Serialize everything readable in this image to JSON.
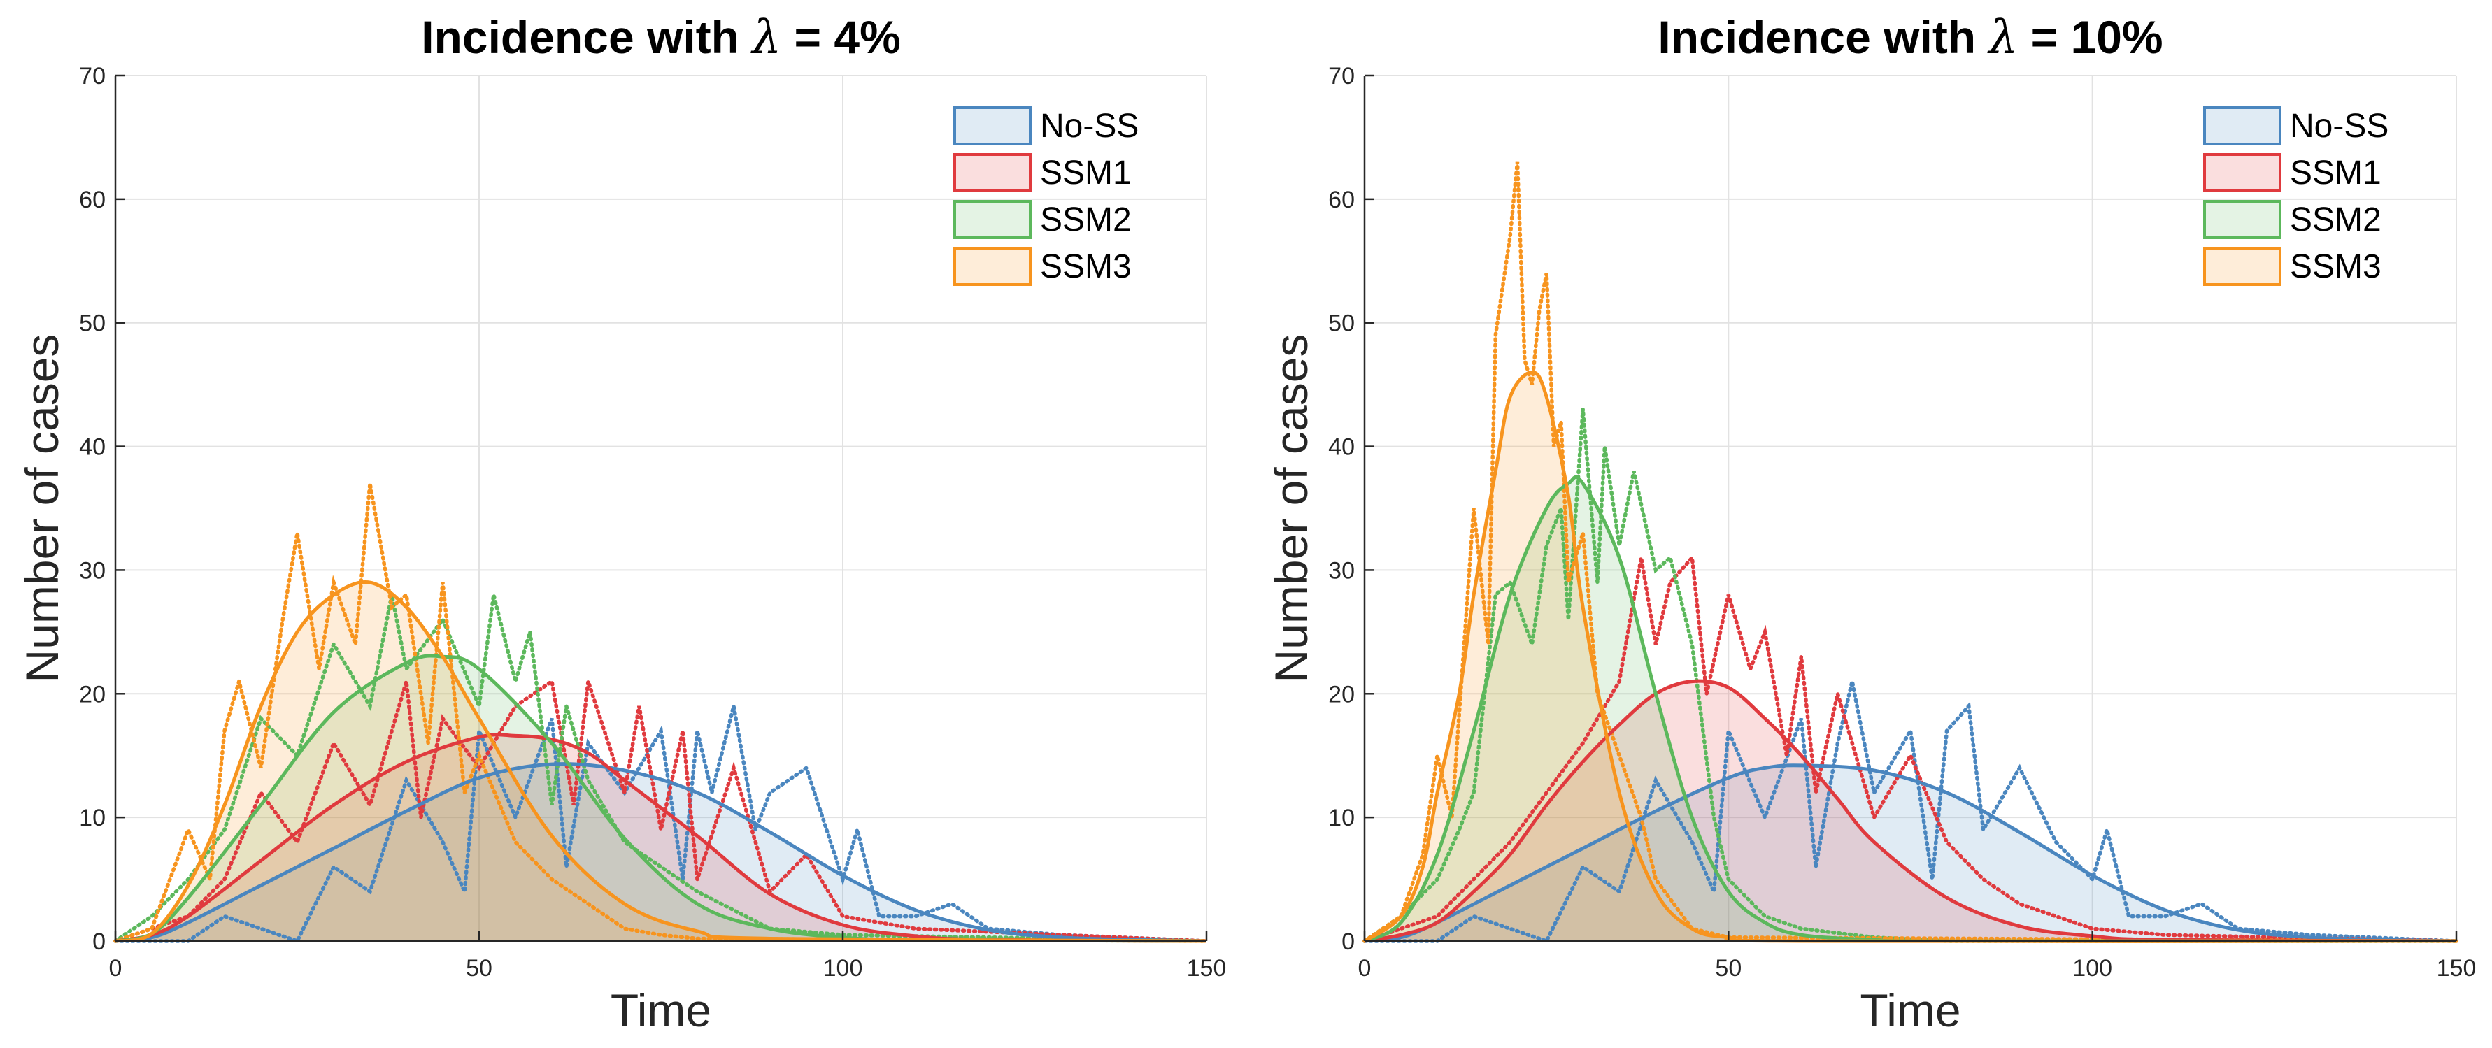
{
  "colors": {
    "No-SS": "#4a86bf",
    "SSM1": "#e03a3e",
    "SSM2": "#5cb85c",
    "SSM3": "#f7941e"
  },
  "chart_data": [
    {
      "type": "line",
      "title": "Incidence with λ = 4%",
      "title_prefix": "Incidence with ",
      "lambda_symbol": "λ",
      "title_suffix": " = 4%",
      "xlabel": "Time",
      "ylabel": "Number of cases",
      "xlim": [
        0,
        150
      ],
      "ylim": [
        0,
        70
      ],
      "xticks": [
        0,
        50,
        100,
        150
      ],
      "yticks": [
        0,
        10,
        20,
        30,
        40,
        50,
        60,
        70
      ],
      "grid": true,
      "legend": [
        "No-SS",
        "SSM1",
        "SSM2",
        "SSM3"
      ],
      "legend_position": "top-right",
      "fill_area": true,
      "series": [
        {
          "name": "No-SS",
          "style": "smooth",
          "x": [
            0,
            5,
            10,
            20,
            30,
            40,
            50,
            60,
            70,
            80,
            90,
            100,
            110,
            120,
            130,
            140,
            150
          ],
          "y": [
            0,
            0.3,
            1.5,
            4.5,
            7.5,
            10.5,
            13.2,
            14.3,
            13.8,
            12,
            8.8,
            5.3,
            2.5,
            0.9,
            0.3,
            0.1,
            0
          ]
        },
        {
          "name": "SSM1",
          "style": "smooth",
          "x": [
            0,
            5,
            10,
            20,
            30,
            40,
            50,
            55,
            60,
            65,
            70,
            80,
            90,
            100,
            110,
            120,
            150
          ],
          "y": [
            0,
            0.5,
            2,
            6.5,
            11,
            14.5,
            16.5,
            16.6,
            16.3,
            15.2,
            13,
            8.5,
            3.8,
            1.3,
            0.4,
            0.1,
            0
          ]
        },
        {
          "name": "SSM2",
          "style": "smooth",
          "x": [
            0,
            5,
            10,
            20,
            30,
            40,
            45,
            50,
            60,
            70,
            80,
            90,
            100,
            110,
            150
          ],
          "y": [
            0,
            0.6,
            3.5,
            11,
            18.5,
            22.5,
            23,
            22,
            16,
            8.3,
            3,
            1,
            0.3,
            0.1,
            0
          ]
        },
        {
          "name": "SSM3",
          "style": "smooth",
          "x": [
            0,
            5,
            10,
            15,
            20,
            25,
            30,
            35,
            40,
            45,
            50,
            60,
            70,
            80,
            90,
            150
          ],
          "y": [
            0,
            0.6,
            4.5,
            11,
            19,
            25,
            28,
            29,
            27,
            23,
            18,
            8.5,
            3,
            0.8,
            0.2,
            0
          ]
        },
        {
          "name": "No-SS",
          "style": "dotted",
          "x": [
            0,
            10,
            15,
            20,
            25,
            30,
            35,
            40,
            45,
            48,
            50,
            55,
            60,
            62,
            65,
            70,
            75,
            78,
            80,
            82,
            85,
            88,
            90,
            95,
            100,
            102,
            105,
            110,
            115,
            120,
            130,
            150
          ],
          "y": [
            0,
            0,
            2,
            1,
            0,
            6,
            4,
            13,
            8,
            4,
            17,
            10,
            18,
            6,
            16,
            12,
            17,
            5,
            17,
            12,
            19,
            9,
            12,
            14,
            5,
            9,
            2,
            2,
            3,
            1,
            0.5,
            0
          ]
        },
        {
          "name": "SSM1",
          "style": "dotted",
          "x": [
            0,
            5,
            10,
            15,
            20,
            25,
            30,
            35,
            40,
            42,
            45,
            50,
            55,
            60,
            63,
            65,
            70,
            72,
            75,
            78,
            80,
            85,
            90,
            95,
            100,
            110,
            150
          ],
          "y": [
            0,
            1,
            2,
            5,
            12,
            8,
            16,
            11,
            21,
            10,
            18,
            14,
            19,
            21,
            11,
            21,
            12,
            19,
            9,
            17,
            5,
            14,
            4,
            7,
            2,
            1,
            0
          ]
        },
        {
          "name": "SSM2",
          "style": "dotted",
          "x": [
            0,
            5,
            10,
            15,
            20,
            25,
            30,
            35,
            38,
            40,
            45,
            50,
            52,
            55,
            57,
            60,
            62,
            65,
            70,
            75,
            80,
            90,
            100,
            150
          ],
          "y": [
            0,
            2,
            5,
            9,
            18,
            15,
            24,
            19,
            28,
            22,
            26,
            19,
            28,
            21,
            25,
            11,
            19,
            13,
            8,
            6,
            4,
            1,
            0.5,
            0
          ]
        },
        {
          "name": "SSM3",
          "style": "dotted",
          "x": [
            0,
            5,
            10,
            13,
            15,
            17,
            20,
            23,
            25,
            28,
            30,
            33,
            35,
            38,
            40,
            43,
            45,
            48,
            50,
            55,
            60,
            65,
            70,
            75,
            80,
            150
          ],
          "y": [
            0,
            1,
            9,
            5,
            17,
            21,
            14,
            26,
            33,
            22,
            29,
            24,
            37,
            27,
            28,
            16,
            29,
            12,
            15,
            8,
            5,
            3,
            1,
            0.5,
            0.2,
            0
          ]
        }
      ]
    },
    {
      "type": "line",
      "title": "Incidence with λ = 10%",
      "title_prefix": "Incidence with ",
      "lambda_symbol": "λ",
      "title_suffix": " = 10%",
      "xlabel": "Time",
      "ylabel": "Number of cases",
      "xlim": [
        0,
        150
      ],
      "ylim": [
        0,
        70
      ],
      "xticks": [
        0,
        50,
        100,
        150
      ],
      "yticks": [
        0,
        10,
        20,
        30,
        40,
        50,
        60,
        70
      ],
      "grid": true,
      "legend": [
        "No-SS",
        "SSM1",
        "SSM2",
        "SSM3"
      ],
      "legend_position": "top-right",
      "fill_area": true,
      "series": [
        {
          "name": "No-SS",
          "style": "smooth",
          "x": [
            0,
            5,
            10,
            20,
            30,
            40,
            50,
            55,
            60,
            70,
            80,
            90,
            100,
            110,
            120,
            130,
            140,
            150
          ],
          "y": [
            0,
            0.3,
            1.5,
            4.5,
            7.5,
            10.5,
            13.2,
            14,
            14.2,
            13.8,
            12,
            8.8,
            5.3,
            2.5,
            0.9,
            0.3,
            0.1,
            0
          ]
        },
        {
          "name": "SSM1",
          "style": "smooth",
          "x": [
            0,
            5,
            10,
            15,
            20,
            25,
            30,
            35,
            40,
            45,
            50,
            55,
            60,
            65,
            70,
            80,
            90,
            100,
            110,
            150
          ],
          "y": [
            0,
            0.5,
            1.5,
            4,
            7,
            11,
            14.5,
            17.5,
            20,
            21,
            20.5,
            18,
            15,
            11.5,
            8,
            3.5,
            1.2,
            0.4,
            0.1,
            0
          ]
        },
        {
          "name": "SSM2",
          "style": "smooth",
          "x": [
            0,
            5,
            10,
            15,
            20,
            25,
            28,
            30,
            35,
            40,
            45,
            50,
            55,
            60,
            70,
            80,
            150
          ],
          "y": [
            0,
            1.5,
            7,
            17,
            28,
            35,
            37,
            37,
            31,
            20,
            10,
            4,
            1.5,
            0.5,
            0.1,
            0,
            0
          ]
        },
        {
          "name": "SSM3",
          "style": "smooth",
          "x": [
            0,
            5,
            8,
            10,
            13,
            15,
            18,
            20,
            23,
            25,
            28,
            30,
            35,
            40,
            45,
            50,
            60,
            150
          ],
          "y": [
            0,
            2,
            6,
            12,
            20,
            28,
            38,
            44,
            46,
            44,
            36,
            27,
            12,
            4,
            1,
            0.3,
            0,
            0
          ]
        },
        {
          "name": "No-SS",
          "style": "dotted",
          "x": [
            0,
            10,
            15,
            20,
            25,
            30,
            35,
            40,
            45,
            48,
            50,
            55,
            60,
            62,
            65,
            67,
            70,
            75,
            78,
            80,
            83,
            85,
            88,
            90,
            95,
            100,
            102,
            105,
            110,
            115,
            120,
            130,
            150
          ],
          "y": [
            0,
            0,
            2,
            1,
            0,
            6,
            4,
            13,
            8,
            4,
            17,
            10,
            18,
            6,
            16,
            21,
            12,
            17,
            5,
            17,
            19,
            9,
            12,
            14,
            8,
            5,
            9,
            2,
            2,
            3,
            1,
            0.5,
            0
          ]
        },
        {
          "name": "SSM1",
          "style": "dotted",
          "x": [
            0,
            5,
            10,
            15,
            20,
            25,
            30,
            35,
            38,
            40,
            42,
            45,
            47,
            50,
            53,
            55,
            58,
            60,
            62,
            65,
            70,
            75,
            80,
            85,
            90,
            100,
            110,
            150
          ],
          "y": [
            0,
            1,
            2,
            5,
            8,
            12,
            16,
            21,
            31,
            24,
            29,
            31,
            20,
            28,
            22,
            25,
            15,
            23,
            12,
            20,
            10,
            15,
            8,
            5,
            3,
            1,
            0.5,
            0
          ]
        },
        {
          "name": "SSM2",
          "style": "dotted",
          "x": [
            0,
            5,
            10,
            13,
            15,
            18,
            20,
            23,
            25,
            27,
            28,
            30,
            32,
            33,
            35,
            37,
            40,
            42,
            45,
            48,
            50,
            55,
            60,
            70,
            80,
            150
          ],
          "y": [
            0,
            2,
            5,
            9,
            12,
            28,
            29,
            24,
            32,
            35,
            26,
            43,
            29,
            40,
            32,
            38,
            30,
            31,
            24,
            10,
            5,
            2,
            1,
            0.3,
            0,
            0
          ]
        },
        {
          "name": "SSM3",
          "style": "dotted",
          "x": [
            0,
            5,
            8,
            10,
            12,
            15,
            17,
            18,
            20,
            21,
            22,
            23,
            24,
            25,
            26,
            27,
            28,
            30,
            32,
            35,
            38,
            40,
            45,
            50,
            150
          ],
          "y": [
            0,
            2,
            7,
            15,
            10,
            35,
            24,
            49,
            57,
            63,
            47,
            45,
            51,
            54,
            40,
            42,
            29,
            33,
            20,
            15,
            10,
            5,
            1,
            0.3,
            0
          ]
        }
      ]
    }
  ]
}
